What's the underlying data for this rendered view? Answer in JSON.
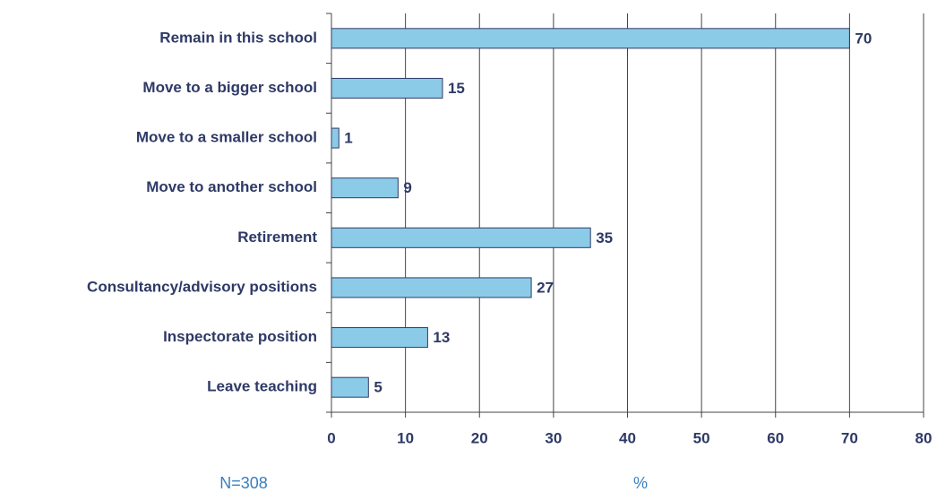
{
  "chart_data": {
    "type": "bar",
    "orientation": "horizontal",
    "categories": [
      "Remain in this school",
      "Move to a bigger school",
      "Move to a smaller school",
      "Move to another school",
      "Retirement",
      "Consultancy/advisory positions",
      "Inspectorate position",
      "Leave teaching"
    ],
    "values": [
      70,
      15,
      1,
      9,
      35,
      27,
      13,
      5
    ],
    "color": "#8ccbe8",
    "xlim": [
      0,
      80
    ],
    "xticks": [
      0,
      10,
      20,
      30,
      40,
      50,
      60,
      70,
      80
    ],
    "grid": true,
    "xlabel": "%",
    "note": "N=308"
  }
}
